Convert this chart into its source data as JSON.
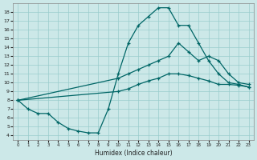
{
  "xlabel": "Humidex (Indice chaleur)",
  "bg_color": "#cce8e8",
  "grid_color": "#99cccc",
  "line_color": "#006666",
  "xlim": [
    -0.5,
    23.5
  ],
  "ylim": [
    3.5,
    19.0
  ],
  "xticks": [
    0,
    1,
    2,
    3,
    4,
    5,
    6,
    7,
    8,
    9,
    10,
    11,
    12,
    13,
    14,
    15,
    16,
    17,
    18,
    19,
    20,
    21,
    22,
    23
  ],
  "yticks": [
    4,
    5,
    6,
    7,
    8,
    9,
    10,
    11,
    12,
    13,
    14,
    15,
    16,
    17,
    18
  ],
  "line1_x": [
    0,
    1,
    2,
    3,
    4,
    5,
    6,
    7,
    8,
    9,
    10,
    11,
    12,
    13,
    14,
    15,
    16,
    17,
    18,
    19,
    20,
    21,
    22,
    23
  ],
  "line1_y": [
    8.0,
    7.0,
    6.5,
    6.5,
    5.5,
    4.8,
    4.5,
    4.3,
    4.3,
    7.0,
    11.0,
    14.5,
    16.5,
    17.5,
    18.5,
    18.5,
    16.5,
    16.5,
    14.5,
    12.5,
    11.0,
    10.0,
    9.8,
    9.5
  ],
  "line2_x": [
    0,
    10,
    11,
    12,
    13,
    14,
    15,
    16,
    17,
    18,
    19,
    20,
    21,
    22,
    23
  ],
  "line2_y": [
    8.0,
    10.5,
    11.0,
    11.5,
    12.0,
    12.5,
    13.0,
    14.5,
    13.5,
    12.5,
    13.0,
    12.5,
    11.0,
    10.0,
    9.8
  ],
  "line3_x": [
    0,
    10,
    11,
    12,
    13,
    14,
    15,
    16,
    17,
    18,
    19,
    20,
    21,
    22,
    23
  ],
  "line3_y": [
    8.0,
    9.0,
    9.3,
    9.8,
    10.2,
    10.5,
    11.0,
    11.0,
    10.8,
    10.5,
    10.2,
    9.8,
    9.8,
    9.7,
    9.5
  ]
}
